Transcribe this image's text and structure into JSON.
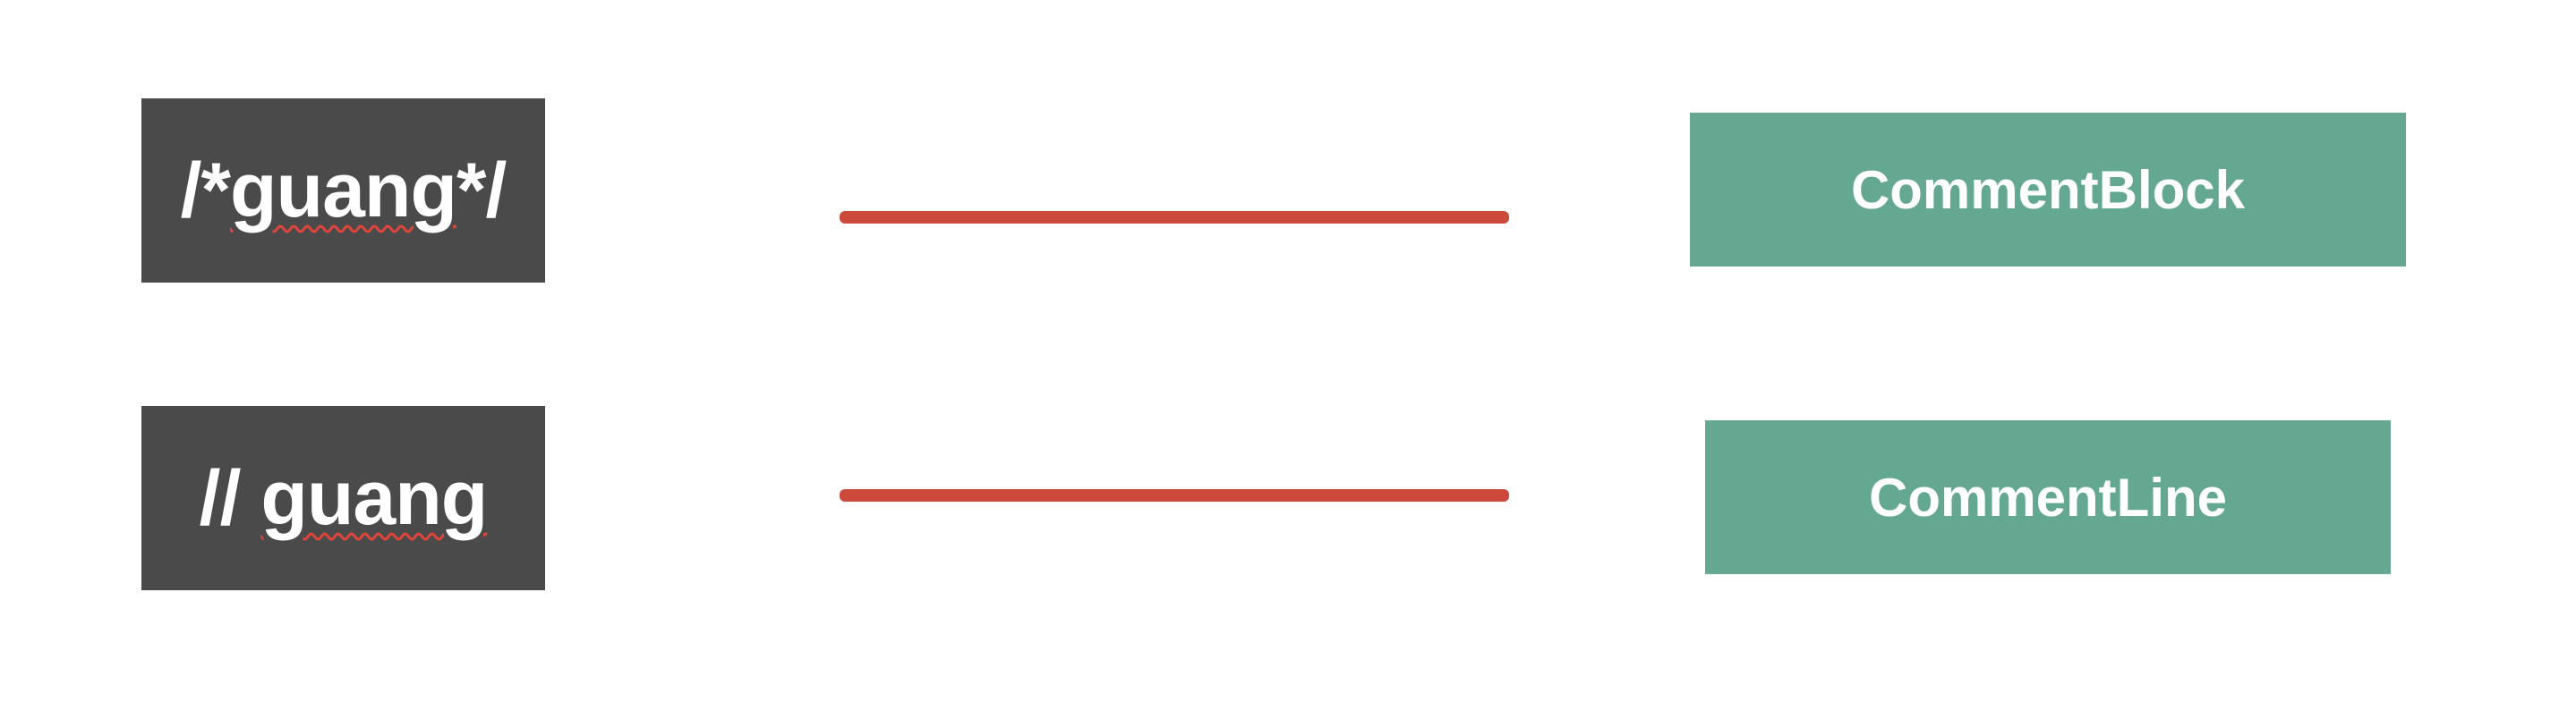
{
  "colors": {
    "code_box_bg": "#4a4a4a",
    "node_box_bg": "#65a891",
    "connector": "#cc4a3b",
    "squiggle": "#e0443a",
    "text": "#ffffff"
  },
  "mappings": [
    {
      "source": {
        "prefix": "/*",
        "word": "guang",
        "suffix": "*/"
      },
      "target": "CommentBlock"
    },
    {
      "source": {
        "prefix": "// ",
        "word": "guang",
        "suffix": ""
      },
      "target": "CommentLine"
    }
  ]
}
